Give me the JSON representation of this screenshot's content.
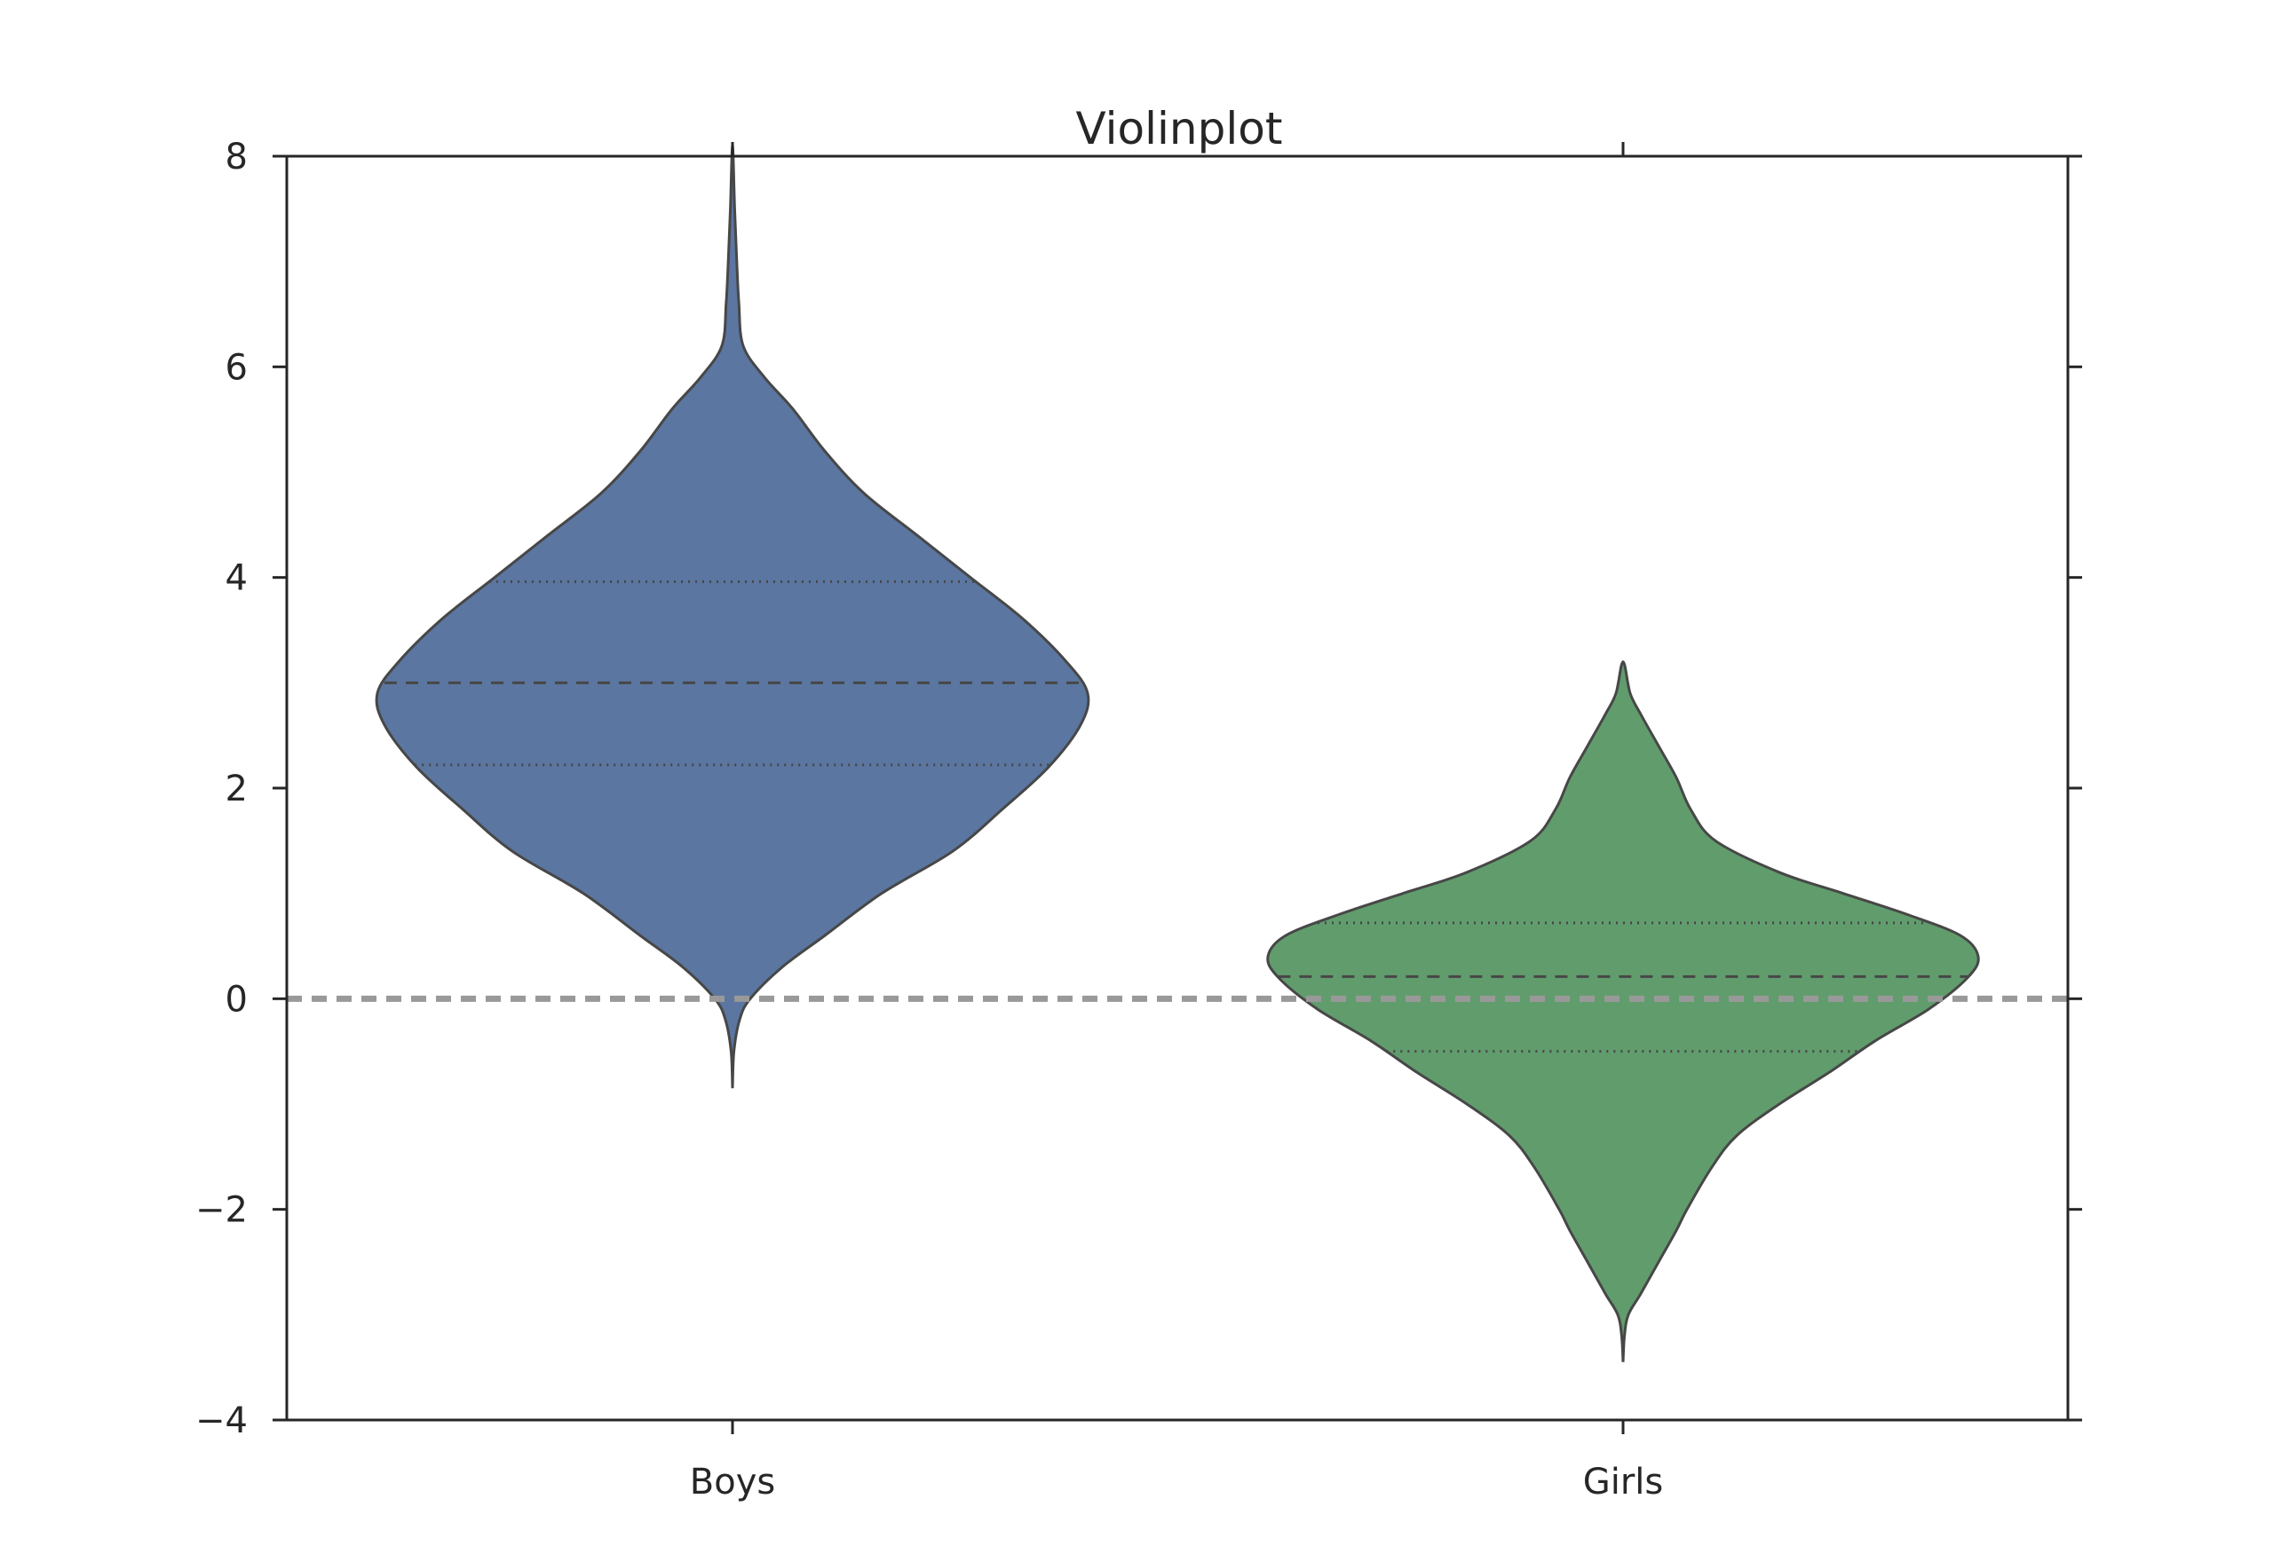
{
  "chart_data": {
    "type": "violin",
    "title": "Violinplot",
    "xlabel": "",
    "ylabel": "",
    "categories": [
      "Boys",
      "Girls"
    ],
    "ylim": [
      -4,
      8
    ],
    "yticks": [
      -4,
      -2,
      0,
      2,
      4,
      6,
      8
    ],
    "ytick_labels": [
      "−4",
      "−2",
      "0",
      "2",
      "4",
      "6",
      "8"
    ],
    "grid": false,
    "reference_line": {
      "y": 0,
      "style": "dashed",
      "color": "#999999"
    },
    "series": [
      {
        "category": "Boys",
        "color": "#5b76a0",
        "range": [
          -0.85,
          8.1
        ],
        "median": 3.0,
        "q1": 2.22,
        "q3": 3.96,
        "density": [
          [
            -0.85,
            0.0
          ],
          [
            -0.5,
            0.004
          ],
          [
            -0.2,
            0.02
          ],
          [
            0.0,
            0.05
          ],
          [
            0.3,
            0.14
          ],
          [
            0.6,
            0.26
          ],
          [
            1.0,
            0.42
          ],
          [
            1.4,
            0.62
          ],
          [
            1.8,
            0.76
          ],
          [
            2.2,
            0.89
          ],
          [
            2.6,
            0.98
          ],
          [
            2.9,
            1.0
          ],
          [
            3.2,
            0.94
          ],
          [
            3.6,
            0.82
          ],
          [
            4.0,
            0.67
          ],
          [
            4.4,
            0.52
          ],
          [
            4.8,
            0.37
          ],
          [
            5.2,
            0.26
          ],
          [
            5.6,
            0.17
          ],
          [
            5.9,
            0.09
          ],
          [
            6.2,
            0.03
          ],
          [
            6.6,
            0.018
          ],
          [
            7.0,
            0.012
          ],
          [
            7.5,
            0.006
          ],
          [
            8.1,
            0.0
          ]
        ]
      },
      {
        "category": "Girls",
        "color": "#619c6d",
        "range": [
          -3.45,
          3.2
        ],
        "median": 0.21,
        "q1": -0.5,
        "q3": 0.72,
        "density": [
          [
            -3.45,
            0.0
          ],
          [
            -3.2,
            0.004
          ],
          [
            -3.0,
            0.015
          ],
          [
            -2.8,
            0.05
          ],
          [
            -2.5,
            0.1
          ],
          [
            -2.2,
            0.15
          ],
          [
            -2.0,
            0.18
          ],
          [
            -1.6,
            0.25
          ],
          [
            -1.3,
            0.32
          ],
          [
            -1.0,
            0.44
          ],
          [
            -0.7,
            0.58
          ],
          [
            -0.4,
            0.71
          ],
          [
            -0.1,
            0.86
          ],
          [
            0.2,
            0.97
          ],
          [
            0.4,
            1.0
          ],
          [
            0.6,
            0.95
          ],
          [
            0.8,
            0.8
          ],
          [
            1.0,
            0.62
          ],
          [
            1.2,
            0.44
          ],
          [
            1.5,
            0.26
          ],
          [
            1.8,
            0.19
          ],
          [
            2.1,
            0.15
          ],
          [
            2.4,
            0.1
          ],
          [
            2.7,
            0.05
          ],
          [
            2.9,
            0.02
          ],
          [
            3.2,
            0.0
          ]
        ]
      }
    ]
  }
}
